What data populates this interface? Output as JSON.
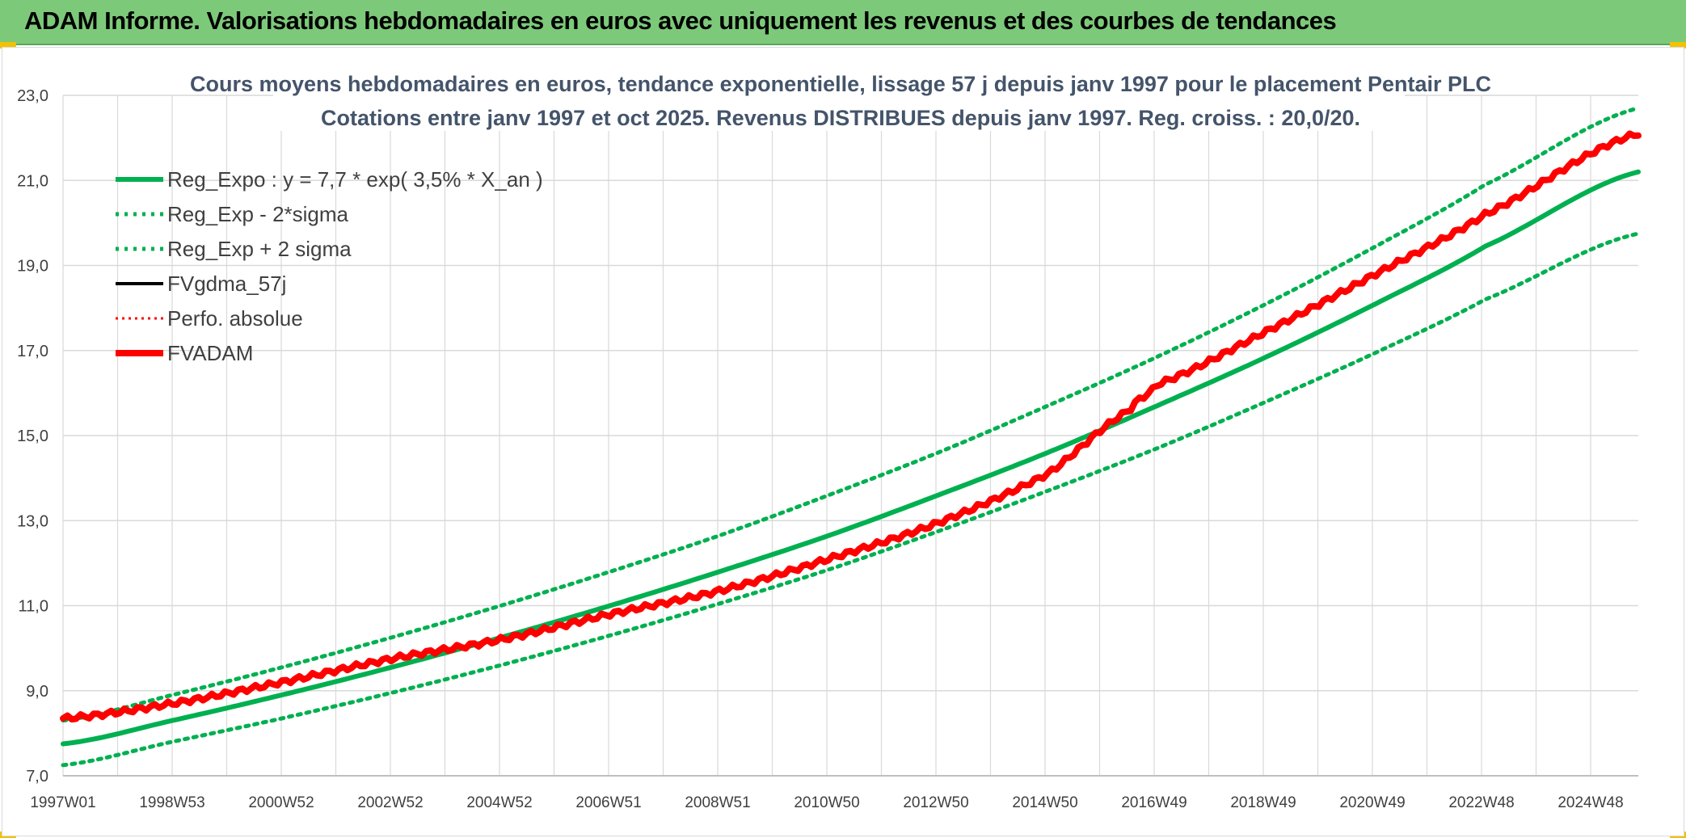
{
  "banner": {
    "title": "ADAM Informe. Valorisations hebdomadaires en euros avec uniquement les revenus et des courbes de tendances"
  },
  "colors": {
    "trend": "#00b050",
    "fvgdma": "#000000",
    "adam": "#ff0000",
    "perfo": "#ff0000",
    "grid": "#d9d9d9",
    "banner": "#7dc97a"
  },
  "chart_data": {
    "type": "line",
    "title": "Cours moyens hebdomadaires en euros, tendance exponentielle, lissage 57 j depuis janv 1997 pour le placement Pentair PLC",
    "subtitle": "Cotations entre janv 1997 et oct 2025. Revenus DISTRIBUES depuis janv 1997. Reg. croiss. : 20,0/20.",
    "xlabel": "",
    "ylabel": "",
    "ylim": [
      7.0,
      23.0
    ],
    "yticks": [
      "7,0",
      "9,0",
      "11,0",
      "13,0",
      "15,0",
      "17,0",
      "19,0",
      "21,0",
      "23,0"
    ],
    "xticks": [
      "1997W01",
      "1998W53",
      "2000W52",
      "2002W52",
      "2004W52",
      "2006W51",
      "2008W51",
      "2010W50",
      "2012W50",
      "2014W50",
      "2016W49",
      "2018W49",
      "2020W49",
      "2022W48",
      "2024W48"
    ],
    "xrange_years": [
      1997.0,
      2025.8
    ],
    "grid": true,
    "legend_position": "top-left",
    "series": [
      {
        "name": "Reg_Expo : y = 7,7 * exp( 3,5% *  X_an )",
        "style": "solid-green-thick",
        "x": [
          1997.0,
          1999.0,
          2001.0,
          2003.0,
          2005.0,
          2007.0,
          2009.0,
          2011.0,
          2013.0,
          2015.0,
          2017.0,
          2019.0,
          2021.0,
          2023.0,
          2025.8
        ],
        "values": [
          7.75,
          8.3,
          8.9,
          9.55,
          10.25,
          11.0,
          11.8,
          12.65,
          13.6,
          14.6,
          15.7,
          16.85,
          18.1,
          19.45,
          21.2
        ]
      },
      {
        "name": "Reg_Exp - 2*sigma",
        "style": "dotted-green",
        "x": [
          1997.0,
          1999.0,
          2001.0,
          2003.0,
          2005.0,
          2007.0,
          2009.0,
          2011.0,
          2013.0,
          2015.0,
          2017.0,
          2019.0,
          2021.0,
          2023.0,
          2025.8
        ],
        "values": [
          7.25,
          7.8,
          8.35,
          8.95,
          9.6,
          10.3,
          11.05,
          11.85,
          12.75,
          13.7,
          14.7,
          15.8,
          16.95,
          18.2,
          19.75
        ]
      },
      {
        "name": "Reg_Exp + 2 sigma",
        "style": "dotted-green",
        "x": [
          1997.0,
          1999.0,
          2001.0,
          2003.0,
          2005.0,
          2007.0,
          2009.0,
          2011.0,
          2013.0,
          2015.0,
          2017.0,
          2019.0,
          2021.0,
          2023.0,
          2025.8
        ],
        "values": [
          8.3,
          8.9,
          9.55,
          10.25,
          11.0,
          11.8,
          12.65,
          13.6,
          14.6,
          15.7,
          16.85,
          18.1,
          19.45,
          20.9,
          22.7
        ]
      },
      {
        "name": "FVgdma_57j",
        "style": "solid-black",
        "x": [],
        "values": []
      },
      {
        "name": "Perfo. absolue",
        "style": "dotted-red",
        "x": [],
        "values": []
      },
      {
        "name": "FVADAM",
        "style": "solid-red-thick",
        "x": [
          1997.0,
          1999.0,
          2001.0,
          2003.0,
          2005.0,
          2007.0,
          2009.0,
          2011.0,
          2013.0,
          2015.0,
          2016.5,
          2017.0,
          2019.0,
          2021.0,
          2023.0,
          2025.8
        ],
        "values": [
          8.35,
          8.7,
          9.2,
          9.75,
          10.2,
          10.8,
          11.35,
          12.1,
          12.95,
          14.1,
          15.6,
          16.2,
          17.45,
          18.8,
          20.2,
          22.1
        ]
      }
    ]
  }
}
